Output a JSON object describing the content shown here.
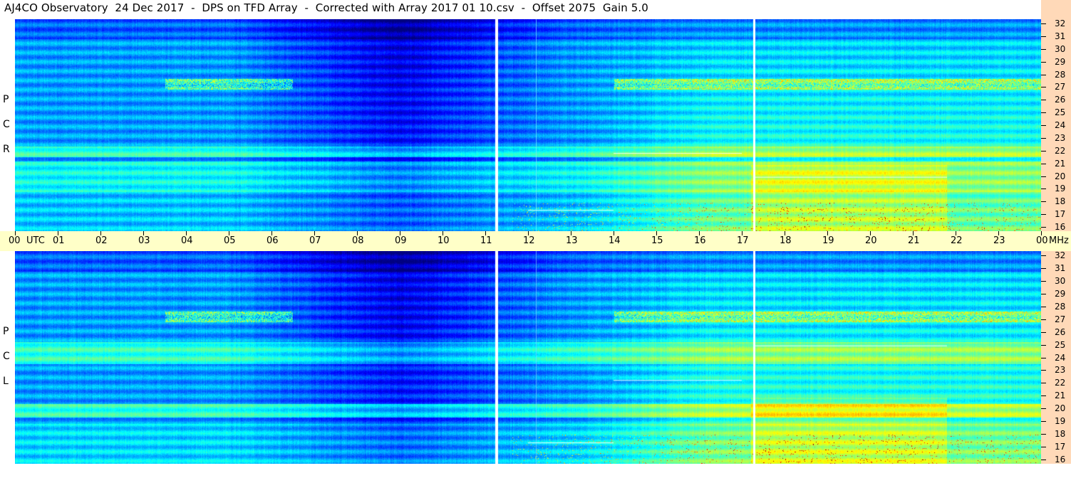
{
  "title": "AJ4CO Observatory  24 Dec 2017  -  DPS on TFD Array  -  Corrected with Array 2017 01 10.csv  -  Offset 2075  Gain 5.0",
  "chart_data": [
    {
      "type": "heatmap",
      "polarization_label": [
        "R",
        "C",
        "P"
      ],
      "x_range_hours_utc": [
        0,
        24
      ],
      "y_range_mhz": [
        16,
        32
      ],
      "y_ticks": [
        "32",
        "31",
        "30",
        "29",
        "28",
        "27",
        "26",
        "25",
        "24",
        "23",
        "22",
        "21",
        "20",
        "19",
        "18",
        "17",
        "16"
      ],
      "colormap": "jet (dark blue low - yellow/red/white high)"
    },
    {
      "type": "heatmap",
      "polarization_label": [
        "L",
        "C",
        "P"
      ],
      "x_range_hours_utc": [
        0,
        24
      ],
      "y_range_mhz": [
        16,
        32
      ],
      "y_ticks": [
        "32",
        "31",
        "30",
        "29",
        "28",
        "27",
        "26",
        "25",
        "24",
        "23",
        "22",
        "21",
        "20",
        "19",
        "18",
        "17",
        "16"
      ],
      "colormap": "jet (dark blue low - yellow/red/white high)"
    }
  ],
  "time_axis": {
    "labels": [
      "00",
      "UTC",
      "01",
      "02",
      "03",
      "04",
      "05",
      "06",
      "07",
      "08",
      "09",
      "10",
      "11",
      "12",
      "13",
      "14",
      "15",
      "16",
      "17",
      "18",
      "19",
      "20",
      "21",
      "22",
      "23",
      "00",
      "MHz"
    ]
  },
  "colors": {
    "time_axis_bg": "#ffffc8",
    "freq_axis_bg": "#ffd9b8"
  }
}
